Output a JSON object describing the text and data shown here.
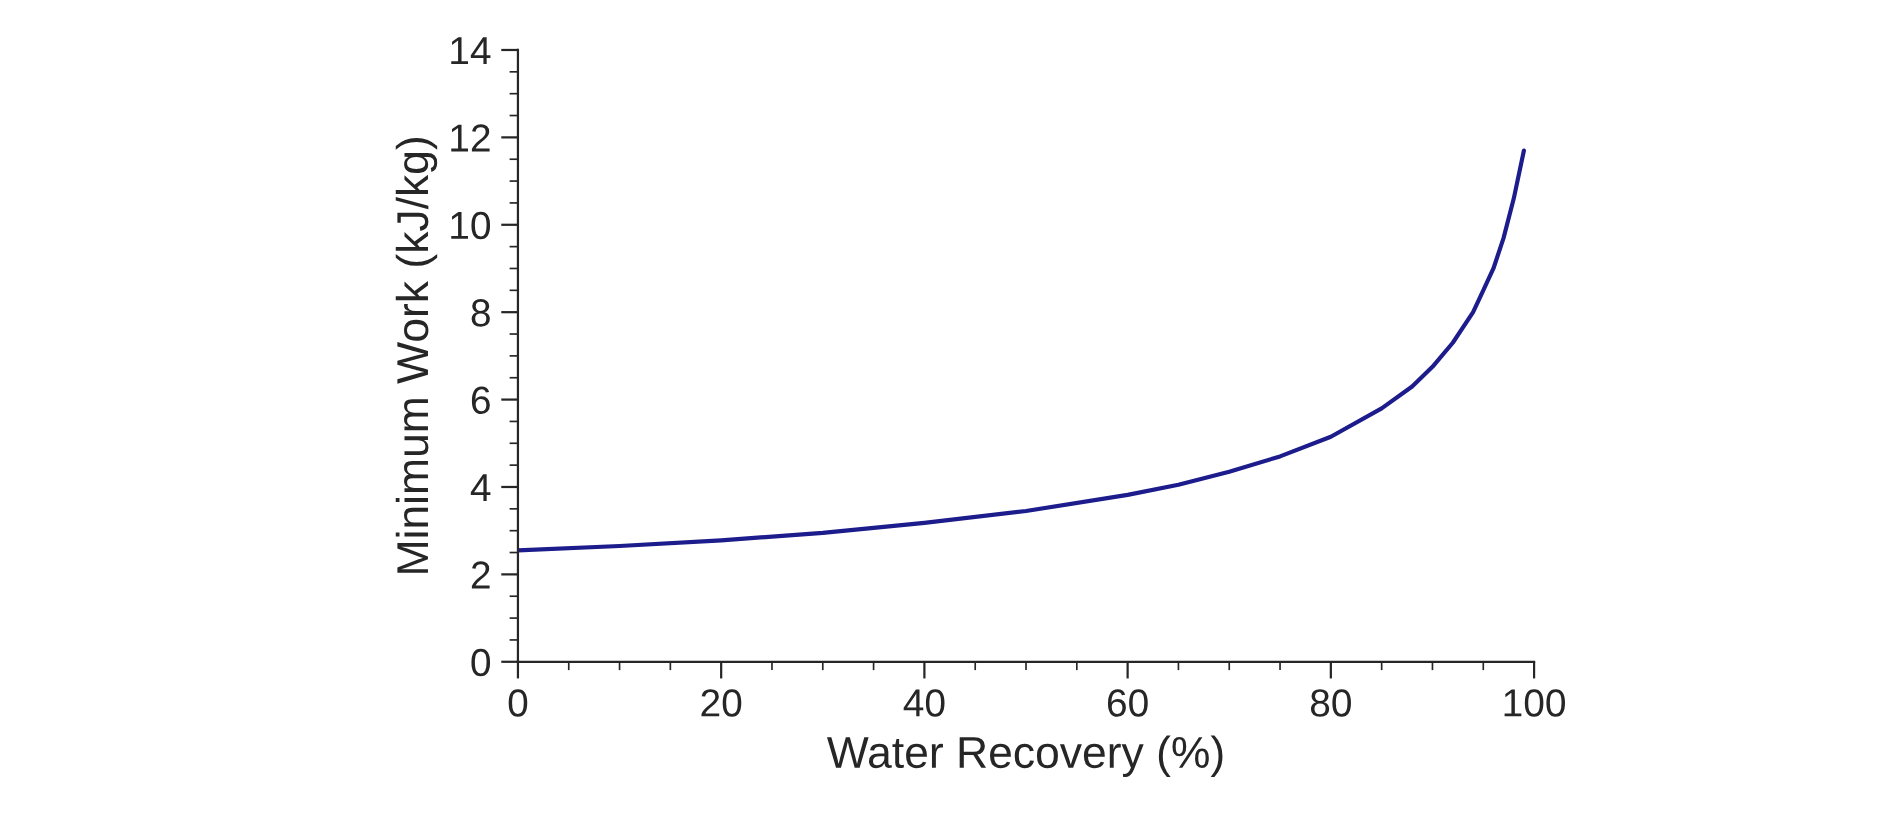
{
  "chart_data": {
    "type": "line",
    "xlabel": "Water Recovery (%)",
    "ylabel": "Minimum Work (kJ/kg)",
    "x": [
      0,
      10,
      20,
      30,
      40,
      50,
      60,
      65,
      70,
      75,
      80,
      85,
      88,
      90,
      92,
      94,
      95,
      96,
      97,
      98,
      99
    ],
    "series": [
      {
        "color": "#1c1c8c",
        "values": [
          2.55,
          2.65,
          2.78,
          2.95,
          3.18,
          3.45,
          3.82,
          4.05,
          4.35,
          4.7,
          5.15,
          5.8,
          6.3,
          6.75,
          7.3,
          8.0,
          8.5,
          9.0,
          9.7,
          10.6,
          11.7
        ]
      }
    ],
    "xlim": [
      0,
      100
    ],
    "ylim": [
      0,
      14
    ],
    "xticks": [
      0,
      20,
      40,
      60,
      80,
      100
    ],
    "yticks": [
      0,
      2,
      4,
      6,
      8,
      10,
      12,
      14
    ],
    "grid": false,
    "legend": false,
    "marker": "none",
    "line_style": "solid"
  }
}
